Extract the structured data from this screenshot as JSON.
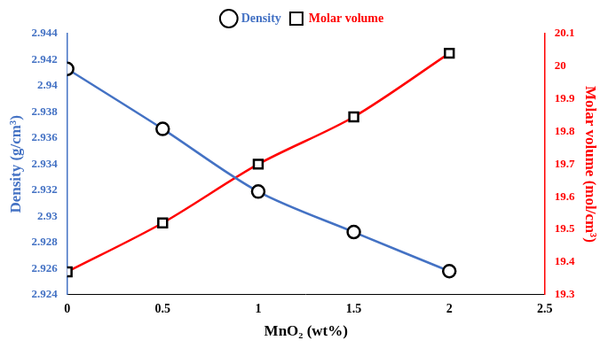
{
  "chart_data": {
    "type": "line",
    "x": [
      0,
      0.5,
      1,
      1.5,
      2
    ],
    "x_label": "MnO₂ (wt%)",
    "y_label": "Density (g/cm³)",
    "y2_label": "Molar volume (mol/cm³)",
    "series": [
      {
        "name": "Density",
        "color": "#4472c4",
        "marker": "circle",
        "axis": "y",
        "values": [
          2.9413,
          2.9367,
          2.9319,
          2.9288,
          2.9258
        ]
      },
      {
        "name": "Molar volume",
        "color": "#ff0000",
        "marker": "square",
        "axis": "y2",
        "values": [
          19.37,
          19.52,
          19.7,
          19.845,
          20.04
        ]
      }
    ],
    "xlim": [
      0,
      2.5
    ],
    "xticks": [
      0,
      0.5,
      1,
      1.5,
      2,
      2.5
    ],
    "ylim": [
      2.924,
      2.944
    ],
    "yticks": [
      2.924,
      2.926,
      2.928,
      2.93,
      2.932,
      2.934,
      2.936,
      2.938,
      2.94,
      2.942,
      2.944
    ],
    "y2lim": [
      19.3,
      20.1
    ],
    "y2ticks": [
      19.3,
      19.4,
      19.5,
      19.6,
      19.7,
      19.8,
      19.9,
      20,
      20.1
    ],
    "grid": false,
    "legend": "top"
  }
}
